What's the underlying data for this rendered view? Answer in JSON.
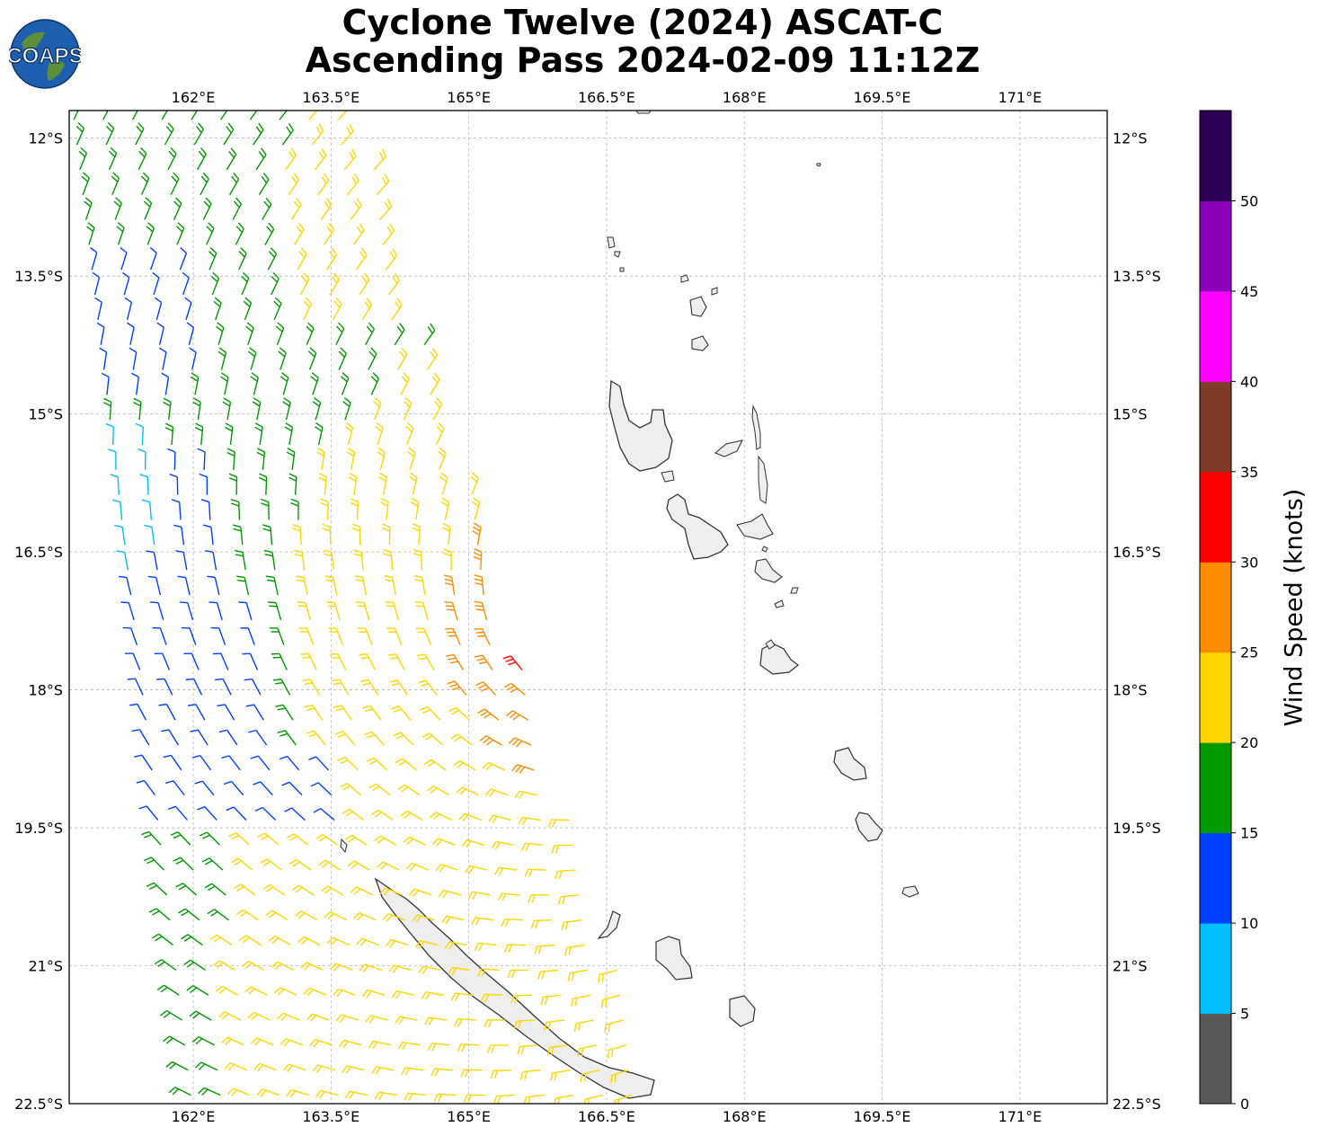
{
  "title": {
    "line1": "Cyclone Twelve (2024) ASCAT-C",
    "line2": "Ascending Pass 2024-02-09 11:12Z"
  },
  "logo": {
    "text": "COAPS"
  },
  "map": {
    "lon_range": [
      160.65,
      171.95
    ],
    "lat_range": [
      -22.5,
      -11.7
    ],
    "lon_ticks": [
      {
        "value": 162,
        "label": "162°E"
      },
      {
        "value": 163.5,
        "label": "163.5°E"
      },
      {
        "value": 165,
        "label": "165°E"
      },
      {
        "value": 166.5,
        "label": "166.5°E"
      },
      {
        "value": 168,
        "label": "168°E"
      },
      {
        "value": 169.5,
        "label": "169.5°E"
      },
      {
        "value": 171,
        "label": "171°E"
      }
    ],
    "lat_ticks": [
      {
        "value": -12,
        "label": "12°S"
      },
      {
        "value": -13.5,
        "label": "13.5°S"
      },
      {
        "value": -15,
        "label": "15°S"
      },
      {
        "value": -16.5,
        "label": "16.5°S"
      },
      {
        "value": -18,
        "label": "18°S"
      },
      {
        "value": -19.5,
        "label": "19.5°S"
      },
      {
        "value": -21,
        "label": "21°S"
      },
      {
        "value": -22.5,
        "label": "22.5°S"
      }
    ],
    "grid": true
  },
  "colorbar": {
    "label": "Wind Speed (knots)",
    "ticks": [
      "0",
      "5",
      "10",
      "15",
      "20",
      "25",
      "30",
      "35",
      "40",
      "45",
      "50"
    ],
    "colors": [
      "#595959",
      "#00bfff",
      "#0040ff",
      "#009900",
      "#ffd700",
      "#ff8c00",
      "#ff0000",
      "#7f3d28",
      "#ff00ff",
      "#8b00b8",
      "#2b0055"
    ]
  }
}
